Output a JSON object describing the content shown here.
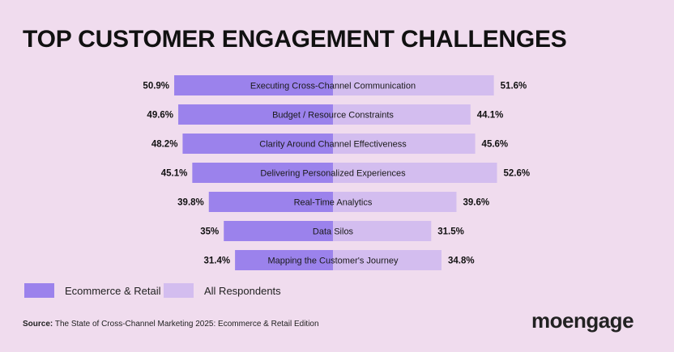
{
  "title": "TOP CUSTOMER ENGAGEMENT CHALLENGES",
  "chart_data": {
    "type": "bar",
    "orientation": "horizontal-diverging",
    "categories": [
      "Executing Cross-Channel Communication",
      "Budget / Resource Constraints",
      "Clarity Around Channel Effectiveness",
      "Delivering Personalized Experiences",
      "Real-Time Analytics",
      "Data Silos",
      "Mapping the Customer's Journey"
    ],
    "series": [
      {
        "name": "Ecommerce & Retail",
        "side": "left",
        "color": "#9b82ec",
        "values": [
          50.9,
          49.6,
          48.2,
          45.1,
          39.8,
          35,
          31.4
        ],
        "labels": [
          "50.9%",
          "49.6%",
          "48.2%",
          "45.1%",
          "39.8%",
          "35%",
          "31.4%"
        ]
      },
      {
        "name": "All Respondents",
        "side": "right",
        "color": "#d3bdef",
        "values": [
          51.6,
          44.1,
          45.6,
          52.6,
          39.6,
          31.5,
          34.8
        ],
        "labels": [
          "51.6%",
          "44.1%",
          "45.6%",
          "52.6%",
          "39.6%",
          "31.5%",
          "34.8%"
        ]
      }
    ]
  },
  "legend": [
    {
      "label": "Ecommerce & Retail",
      "color": "#9b82ec"
    },
    {
      "label": "All Respondents",
      "color": "#d3bdef"
    }
  ],
  "source": {
    "prefix": "Source:",
    "text": " The State of Cross-Channel Marketing 2025: Ecommerce & Retail Edition"
  },
  "logo": "moengage"
}
